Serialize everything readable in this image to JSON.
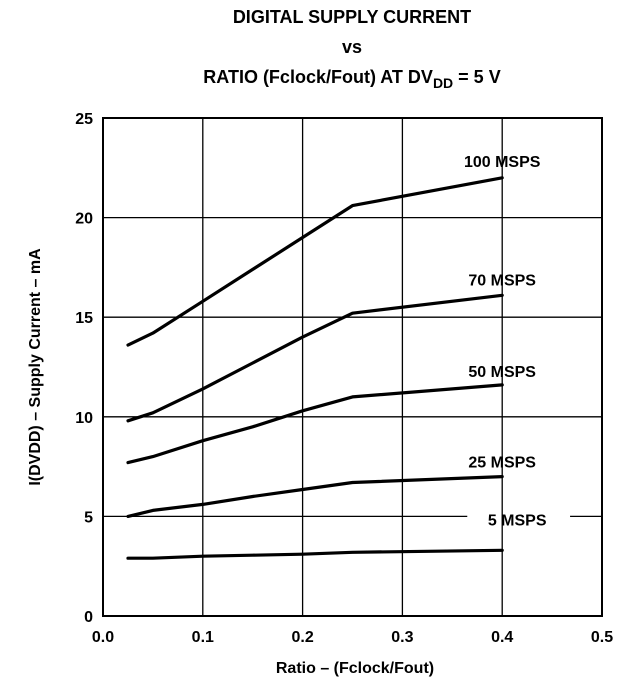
{
  "chart_data": {
    "type": "line",
    "title_line1": "DIGITAL SUPPLY CURRENT",
    "title_line2": "vs",
    "title_line3_prefix": "RATIO (Fclock/Fout) AT DV",
    "title_line3_subscript": "DD",
    "title_line3_suffix": " = 5 V",
    "xlabel": "Ratio – (Fclock/Fout)",
    "ylabel": "I(DVDD) – Supply Current – mA",
    "xlim": [
      0.0,
      0.5
    ],
    "ylim": [
      0,
      25
    ],
    "xticks": [
      "0.0",
      "0.1",
      "0.2",
      "0.3",
      "0.4",
      "0.5"
    ],
    "yticks": [
      "0",
      "5",
      "10",
      "15",
      "20",
      "25"
    ],
    "grid": true,
    "legend": "none",
    "series": [
      {
        "name": "100 MSPS",
        "x": [
          0.025,
          0.05,
          0.1,
          0.15,
          0.2,
          0.25,
          0.4
        ],
        "y": [
          13.6,
          14.2,
          15.8,
          17.4,
          19.0,
          20.6,
          22.0
        ]
      },
      {
        "name": "70 MSPS",
        "x": [
          0.025,
          0.05,
          0.1,
          0.15,
          0.2,
          0.25,
          0.4
        ],
        "y": [
          9.8,
          10.2,
          11.4,
          12.7,
          14.0,
          15.2,
          16.1
        ]
      },
      {
        "name": "50 MSPS",
        "x": [
          0.025,
          0.05,
          0.1,
          0.15,
          0.2,
          0.25,
          0.4
        ],
        "y": [
          7.7,
          8.0,
          8.8,
          9.5,
          10.3,
          11.0,
          11.6
        ]
      },
      {
        "name": "25 MSPS",
        "x": [
          0.025,
          0.05,
          0.1,
          0.15,
          0.2,
          0.25,
          0.4
        ],
        "y": [
          5.0,
          5.3,
          5.6,
          6.0,
          6.35,
          6.7,
          7.0
        ]
      },
      {
        "name": "5 MSPS",
        "x": [
          0.025,
          0.05,
          0.1,
          0.15,
          0.2,
          0.25,
          0.4
        ],
        "y": [
          2.9,
          2.9,
          3.0,
          3.05,
          3.1,
          3.2,
          3.3
        ]
      }
    ]
  }
}
